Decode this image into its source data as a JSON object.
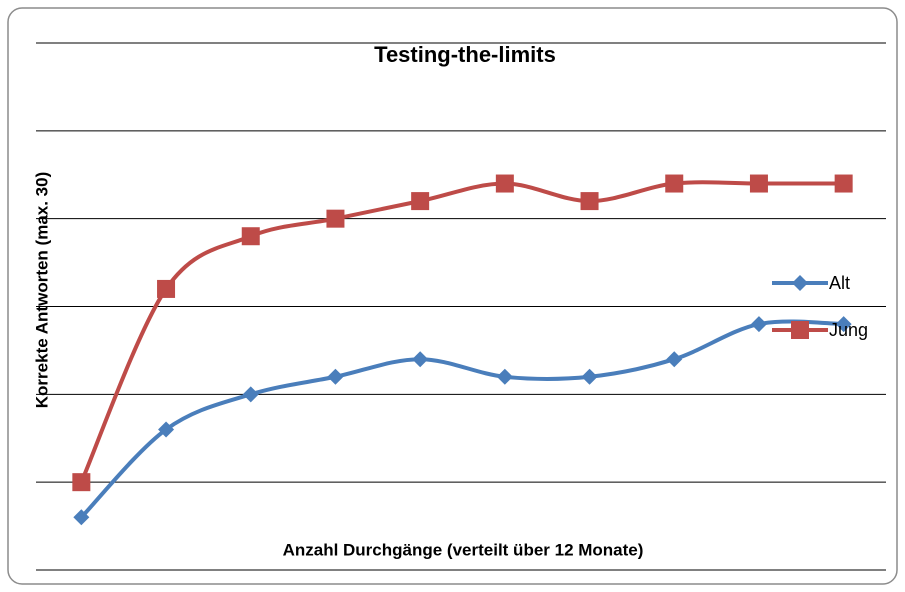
{
  "chart_data": {
    "type": "line",
    "title": "Testing-the-limits",
    "x_label": "Anzahl Durchgänge (verteilt über 12 Monate)",
    "y_label": "Korrekte Antworten (max. 30)",
    "categories": [
      null,
      null,
      null,
      null,
      null,
      null,
      null,
      null,
      null,
      null
    ],
    "series": [
      {
        "name": "Alt",
        "color": "#4a7ebb",
        "marker": "diamond",
        "values": [
          3,
          8,
          10,
          11,
          12,
          11,
          11,
          12,
          14,
          14
        ]
      },
      {
        "name": "Jung",
        "color": "#be4b48",
        "marker": "square",
        "values": [
          5,
          16,
          19,
          20,
          21,
          22,
          21,
          22,
          22,
          22
        ]
      }
    ],
    "ylim": [
      0,
      30
    ],
    "yticks": [
      0,
      5,
      10,
      15,
      20,
      25,
      30
    ],
    "grid": true,
    "smooth": true,
    "legend": "right"
  }
}
